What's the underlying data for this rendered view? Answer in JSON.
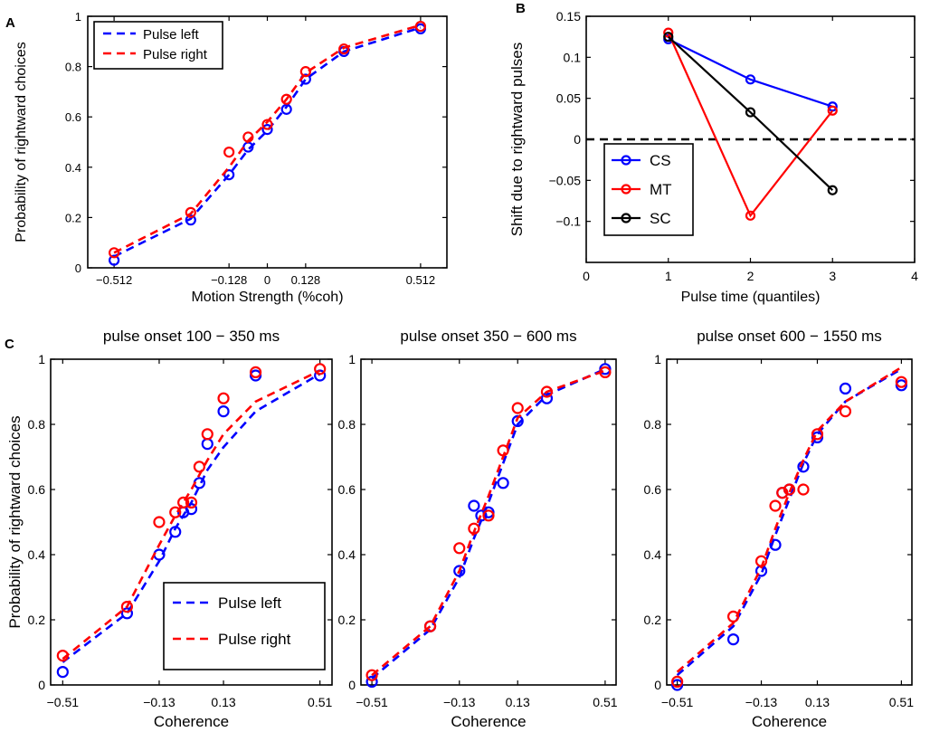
{
  "panels": [
    {
      "letter": "A",
      "type": "line",
      "title": "",
      "xlabel": "Motion Strength (%coh)",
      "ylabel": "Probability of rightward choices",
      "xlim": [
        -0.6,
        0.6
      ],
      "ylim": [
        0,
        1
      ],
      "xticks": [
        -0.512,
        -0.128,
        0,
        0.128,
        0.512
      ],
      "xtick_labels": [
        "−0.512",
        "−0.128",
        "0",
        "0.128",
        "0.512"
      ],
      "yticks": [
        0,
        0.2,
        0.4,
        0.6,
        0.8,
        1
      ],
      "ytick_labels": [
        "0",
        "0.2",
        "0.4",
        "0.6",
        "0.8",
        "1"
      ],
      "legend": {
        "position": "top-left",
        "entries": [
          "Pulse left",
          "Pulse right"
        ]
      },
      "series": [
        {
          "name": "Pulse left",
          "color": "#0000ff",
          "points_x": [
            -0.512,
            -0.256,
            -0.128,
            -0.064,
            0,
            0.064,
            0.128,
            0.256,
            0.512
          ],
          "points_y": [
            0.03,
            0.19,
            0.37,
            0.48,
            0.55,
            0.63,
            0.75,
            0.86,
            0.95
          ],
          "fit_x": [
            -0.512,
            -0.256,
            -0.128,
            -0.064,
            0,
            0.064,
            0.128,
            0.256,
            0.512
          ],
          "fit_y": [
            0.045,
            0.195,
            0.37,
            0.47,
            0.545,
            0.64,
            0.75,
            0.86,
            0.955
          ]
        },
        {
          "name": "Pulse right",
          "color": "#ff0000",
          "points_x": [
            -0.512,
            -0.256,
            -0.128,
            -0.064,
            0,
            0.064,
            0.128,
            0.256,
            0.512
          ],
          "points_y": [
            0.06,
            0.22,
            0.46,
            0.52,
            0.57,
            0.67,
            0.78,
            0.87,
            0.96
          ],
          "fit_x": [
            -0.512,
            -0.256,
            -0.128,
            -0.064,
            0,
            0.064,
            0.128,
            0.256,
            0.512
          ],
          "fit_y": [
            0.06,
            0.215,
            0.4,
            0.505,
            0.58,
            0.67,
            0.775,
            0.875,
            0.965
          ]
        }
      ]
    },
    {
      "letter": "B",
      "type": "line",
      "title": "",
      "xlabel": "Pulse time (quantiles)",
      "ylabel": "Shift due to rightward pulses",
      "xlim": [
        0,
        4
      ],
      "ylim": [
        -0.15,
        0.15
      ],
      "xticks": [
        0,
        1,
        2,
        3,
        4
      ],
      "xtick_labels": [
        "0",
        "1",
        "2",
        "3",
        "4"
      ],
      "yticks": [
        -0.1,
        -0.05,
        0,
        0.05,
        0.1,
        0.15
      ],
      "ytick_labels": [
        "−0.1",
        "−0.05",
        "0",
        "0.05",
        "0.1",
        "0.15"
      ],
      "zero_line": true,
      "legend": {
        "position": "bottom-left",
        "entries": [
          "CS",
          "MT",
          "SC"
        ]
      },
      "series": [
        {
          "name": "CS",
          "color": "#0000ff",
          "x": [
            1,
            2,
            3
          ],
          "y": [
            0.122,
            0.073,
            0.04
          ]
        },
        {
          "name": "MT",
          "color": "#ff0000",
          "x": [
            1,
            2,
            3
          ],
          "y": [
            0.13,
            -0.093,
            0.035
          ]
        },
        {
          "name": "SC",
          "color": "#000000",
          "x": [
            1,
            2,
            3
          ],
          "y": [
            0.125,
            0.033,
            -0.062
          ]
        }
      ]
    },
    {
      "letter": "C",
      "type": "line",
      "title": "pulse onset 100 − 350 ms",
      "xlabel": "Coherence",
      "ylabel": "Probability of rightward choices",
      "xlim": [
        -0.56,
        0.56
      ],
      "ylim": [
        0,
        1
      ],
      "xticks": [
        -0.512,
        -0.128,
        0.128,
        0.512
      ],
      "xtick_labels": [
        "−0.51",
        "−0.13",
        "0.13",
        "0.51"
      ],
      "yticks": [
        0,
        0.2,
        0.4,
        0.6,
        0.8,
        1
      ],
      "ytick_labels": [
        "0",
        "0.2",
        "0.4",
        "0.6",
        "0.8",
        "1"
      ],
      "legend": {
        "position": "bottom-right",
        "entries": [
          "Pulse left",
          "Pulse right"
        ]
      },
      "series": [
        {
          "name": "Pulse left",
          "color": "#0000ff",
          "points_x": [
            -0.512,
            -0.256,
            -0.128,
            -0.064,
            -0.032,
            0,
            0.032,
            0.064,
            0.128,
            0.256,
            0.512
          ],
          "points_y": [
            0.04,
            0.22,
            0.4,
            0.47,
            0.53,
            0.54,
            0.62,
            0.74,
            0.84,
            0.95,
            0.95
          ],
          "fit_x": [
            -0.512,
            -0.256,
            -0.128,
            -0.064,
            0,
            0.064,
            0.128,
            0.256,
            0.512
          ],
          "fit_y": [
            0.07,
            0.22,
            0.38,
            0.48,
            0.56,
            0.66,
            0.73,
            0.84,
            0.955
          ]
        },
        {
          "name": "Pulse right",
          "color": "#ff0000",
          "points_x": [
            -0.512,
            -0.256,
            -0.128,
            -0.064,
            -0.032,
            0,
            0.032,
            0.064,
            0.128,
            0.256,
            0.512
          ],
          "points_y": [
            0.09,
            0.24,
            0.5,
            0.53,
            0.56,
            0.56,
            0.67,
            0.77,
            0.88,
            0.96,
            0.97
          ],
          "fit_x": [
            -0.512,
            -0.256,
            -0.128,
            -0.064,
            0,
            0.064,
            0.128,
            0.256,
            0.512
          ],
          "fit_y": [
            0.08,
            0.24,
            0.43,
            0.52,
            0.6,
            0.69,
            0.77,
            0.87,
            0.965
          ]
        }
      ]
    },
    {
      "letter": "",
      "type": "line",
      "title": "pulse onset 350 − 600 ms",
      "xlabel": "Coherence",
      "ylabel": "",
      "xlim": [
        -0.56,
        0.56
      ],
      "ylim": [
        0,
        1
      ],
      "xticks": [
        -0.512,
        -0.128,
        0.128,
        0.512
      ],
      "xtick_labels": [
        "−0.51",
        "−0.13",
        "0.13",
        "0.51"
      ],
      "yticks": [
        0,
        0.2,
        0.4,
        0.6,
        0.8,
        1
      ],
      "ytick_labels": [
        "0",
        "0.2",
        "0.4",
        "0.6",
        "0.8",
        "1"
      ],
      "series": [
        {
          "name": "Pulse left",
          "color": "#0000ff",
          "points_x": [
            -0.512,
            -0.256,
            -0.128,
            -0.064,
            -0.032,
            0,
            0.064,
            0.128,
            0.256,
            0.512
          ],
          "points_y": [
            0.01,
            0.18,
            0.35,
            0.55,
            0.52,
            0.53,
            0.62,
            0.81,
            0.88,
            0.97
          ],
          "fit_x": [
            -0.512,
            -0.256,
            -0.128,
            -0.064,
            0,
            0.064,
            0.128,
            0.256,
            0.512
          ],
          "fit_y": [
            0.02,
            0.17,
            0.33,
            0.45,
            0.56,
            0.68,
            0.8,
            0.89,
            0.97
          ]
        },
        {
          "name": "Pulse right",
          "color": "#ff0000",
          "points_x": [
            -0.512,
            -0.256,
            -0.128,
            -0.064,
            0,
            0.064,
            0.128,
            0.256,
            0.512
          ],
          "points_y": [
            0.03,
            0.18,
            0.42,
            0.48,
            0.52,
            0.72,
            0.85,
            0.9,
            0.96
          ],
          "fit_x": [
            -0.512,
            -0.256,
            -0.128,
            -0.064,
            0,
            0.064,
            0.128,
            0.256,
            0.512
          ],
          "fit_y": [
            0.03,
            0.18,
            0.35,
            0.47,
            0.58,
            0.7,
            0.82,
            0.9,
            0.965
          ]
        }
      ]
    },
    {
      "letter": "",
      "type": "line",
      "title": "pulse onset 600 − 1550 ms",
      "xlabel": "Coherence",
      "ylabel": "",
      "xlim": [
        -0.56,
        0.56
      ],
      "ylim": [
        0,
        1
      ],
      "xticks": [
        -0.512,
        -0.128,
        0.128,
        0.512
      ],
      "xtick_labels": [
        "−0.51",
        "−0.13",
        "0.13",
        "0.51"
      ],
      "yticks": [
        0,
        0.2,
        0.4,
        0.6,
        0.8,
        1
      ],
      "ytick_labels": [
        "0",
        "0.2",
        "0.4",
        "0.6",
        "0.8",
        "1"
      ],
      "series": [
        {
          "name": "Pulse left",
          "color": "#0000ff",
          "points_x": [
            -0.512,
            -0.256,
            -0.128,
            -0.064,
            -0.032,
            0,
            0.064,
            0.128,
            0.256,
            0.512
          ],
          "points_y": [
            0.0,
            0.14,
            0.35,
            0.43,
            0.59,
            0.6,
            0.67,
            0.76,
            0.91,
            0.92
          ],
          "fit_x": [
            -0.512,
            -0.256,
            -0.128,
            -0.064,
            0,
            0.064,
            0.128,
            0.256,
            0.512
          ],
          "fit_y": [
            0.03,
            0.18,
            0.34,
            0.46,
            0.57,
            0.68,
            0.77,
            0.87,
            0.97
          ]
        },
        {
          "name": "Pulse right",
          "color": "#ff0000",
          "points_x": [
            -0.512,
            -0.256,
            -0.128,
            -0.064,
            -0.032,
            0,
            0.064,
            0.128,
            0.256,
            0.512
          ],
          "points_y": [
            0.01,
            0.21,
            0.38,
            0.55,
            0.59,
            0.6,
            0.6,
            0.77,
            0.84,
            0.93
          ],
          "fit_x": [
            -0.512,
            -0.256,
            -0.128,
            -0.064,
            0,
            0.064,
            0.128,
            0.256,
            0.512
          ],
          "fit_y": [
            0.04,
            0.19,
            0.36,
            0.48,
            0.59,
            0.69,
            0.78,
            0.87,
            0.975
          ]
        }
      ]
    }
  ],
  "chart_data": [
    {
      "panel": "A",
      "type": "line",
      "title": "",
      "xlabel": "Motion Strength (%coh)",
      "ylabel": "Probability of rightward choices",
      "xlim": [
        -0.6,
        0.6
      ],
      "ylim": [
        0,
        1
      ],
      "series": [
        {
          "name": "Pulse left",
          "x": [
            -0.512,
            -0.256,
            -0.128,
            -0.064,
            0,
            0.064,
            0.128,
            0.256,
            0.512
          ],
          "y": [
            0.03,
            0.19,
            0.37,
            0.48,
            0.55,
            0.63,
            0.75,
            0.86,
            0.95
          ]
        },
        {
          "name": "Pulse right",
          "x": [
            -0.512,
            -0.256,
            -0.128,
            -0.064,
            0,
            0.064,
            0.128,
            0.256,
            0.512
          ],
          "y": [
            0.06,
            0.22,
            0.46,
            0.52,
            0.57,
            0.67,
            0.78,
            0.87,
            0.96
          ]
        }
      ]
    },
    {
      "panel": "B",
      "type": "line",
      "title": "",
      "xlabel": "Pulse time (quantiles)",
      "ylabel": "Shift due to rightward pulses",
      "xlim": [
        0,
        4
      ],
      "ylim": [
        -0.15,
        0.15
      ],
      "series": [
        {
          "name": "CS",
          "x": [
            1,
            2,
            3
          ],
          "y": [
            0.122,
            0.073,
            0.04
          ]
        },
        {
          "name": "MT",
          "x": [
            1,
            2,
            3
          ],
          "y": [
            0.13,
            -0.093,
            0.035
          ]
        },
        {
          "name": "SC",
          "x": [
            1,
            2,
            3
          ],
          "y": [
            0.125,
            0.033,
            -0.062
          ]
        }
      ]
    },
    {
      "panel": "C1",
      "type": "line",
      "title": "pulse onset 100 − 350 ms",
      "xlabel": "Coherence",
      "ylabel": "Probability of rightward choices",
      "xlim": [
        -0.56,
        0.56
      ],
      "ylim": [
        0,
        1
      ],
      "series": [
        {
          "name": "Pulse left",
          "x": [
            -0.512,
            -0.256,
            -0.128,
            -0.064,
            -0.032,
            0,
            0.032,
            0.064,
            0.128,
            0.256,
            0.512
          ],
          "y": [
            0.04,
            0.22,
            0.4,
            0.47,
            0.53,
            0.54,
            0.62,
            0.74,
            0.84,
            0.95,
            0.95
          ]
        },
        {
          "name": "Pulse right",
          "x": [
            -0.512,
            -0.256,
            -0.128,
            -0.064,
            -0.032,
            0,
            0.032,
            0.064,
            0.128,
            0.256,
            0.512
          ],
          "y": [
            0.09,
            0.24,
            0.5,
            0.53,
            0.56,
            0.56,
            0.67,
            0.77,
            0.88,
            0.96,
            0.97
          ]
        }
      ]
    },
    {
      "panel": "C2",
      "type": "line",
      "title": "pulse onset 350 − 600 ms",
      "xlabel": "Coherence",
      "ylabel": "",
      "xlim": [
        -0.56,
        0.56
      ],
      "ylim": [
        0,
        1
      ],
      "series": [
        {
          "name": "Pulse left",
          "x": [
            -0.512,
            -0.256,
            -0.128,
            -0.064,
            -0.032,
            0,
            0.064,
            0.128,
            0.256,
            0.512
          ],
          "y": [
            0.01,
            0.18,
            0.35,
            0.55,
            0.52,
            0.53,
            0.62,
            0.81,
            0.88,
            0.97
          ]
        },
        {
          "name": "Pulse right",
          "x": [
            -0.512,
            -0.256,
            -0.128,
            -0.064,
            0,
            0.064,
            0.128,
            0.256,
            0.512
          ],
          "y": [
            0.03,
            0.18,
            0.42,
            0.48,
            0.52,
            0.72,
            0.85,
            0.9,
            0.96
          ]
        }
      ]
    },
    {
      "panel": "C3",
      "type": "line",
      "title": "pulse onset 600 − 1550 ms",
      "xlabel": "Coherence",
      "ylabel": "",
      "xlim": [
        -0.56,
        0.56
      ],
      "ylim": [
        0,
        1
      ],
      "series": [
        {
          "name": "Pulse left",
          "x": [
            -0.512,
            -0.256,
            -0.128,
            -0.064,
            -0.032,
            0,
            0.064,
            0.128,
            0.256,
            0.512
          ],
          "y": [
            0.0,
            0.14,
            0.35,
            0.43,
            0.59,
            0.6,
            0.67,
            0.76,
            0.91,
            0.92
          ]
        },
        {
          "name": "Pulse right",
          "x": [
            -0.512,
            -0.256,
            -0.128,
            -0.064,
            -0.032,
            0,
            0.064,
            0.128,
            0.256,
            0.512
          ],
          "y": [
            0.01,
            0.21,
            0.38,
            0.55,
            0.59,
            0.6,
            0.6,
            0.77,
            0.84,
            0.93
          ]
        }
      ]
    }
  ]
}
